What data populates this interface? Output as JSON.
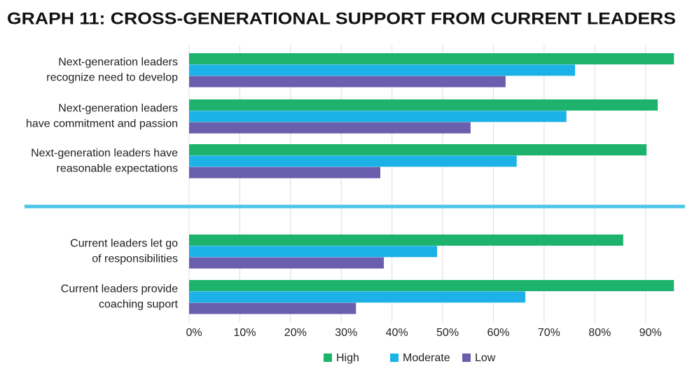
{
  "chart_data": {
    "type": "bar",
    "orientation": "horizontal",
    "title": "GRAPH 11: CROSS-GENERATIONAL SUPPORT FROM CURRENT LEADERS",
    "categories": [
      [
        "Next-generation leaders",
        "recognize need to develop"
      ],
      [
        "Next-generation leaders",
        "have commitment and passion"
      ],
      [
        "Next-generation leaders have",
        "reasonable expectations"
      ],
      [
        "Current leaders let go",
        "of responsibilities"
      ],
      [
        "Current leaders provide",
        "coaching suport"
      ]
    ],
    "series": [
      {
        "name": "High",
        "color": "#1db36c",
        "values": [
          95.6,
          92.4,
          90.2,
          85.6,
          95.6
        ]
      },
      {
        "name": "Moderate",
        "color": "#1cb2e8",
        "values": [
          76.1,
          74.4,
          64.6,
          48.9,
          66.3
        ]
      },
      {
        "name": "Low",
        "color": "#6a5fad",
        "values": [
          62.4,
          55.5,
          37.7,
          38.4,
          32.9
        ]
      }
    ],
    "xlim": [
      0,
      97.5
    ],
    "xticks": [
      {
        "value": 0,
        "label": "0%"
      },
      {
        "value": 10,
        "label": "10%"
      },
      {
        "value": 20,
        "label": "20%"
      },
      {
        "value": 30,
        "label": "30%"
      },
      {
        "value": 40,
        "label": "40%"
      },
      {
        "value": 50,
        "label": "50%"
      },
      {
        "value": 60,
        "label": "60%"
      },
      {
        "value": 70,
        "label": "70%"
      },
      {
        "value": 80,
        "label": "80%"
      },
      {
        "value": 90,
        "label": "90%"
      }
    ],
    "grid": true
  }
}
